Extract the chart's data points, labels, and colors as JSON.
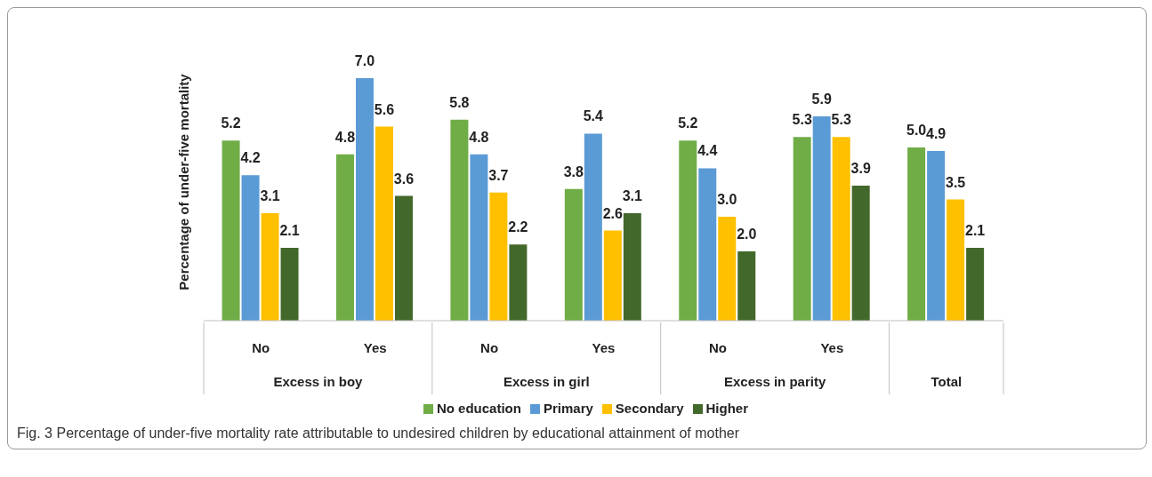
{
  "chart_data": {
    "type": "bar",
    "ylabel": "Percentage of under-five mortality",
    "categories": [
      "No",
      "Yes",
      "No",
      "Yes",
      "No",
      "Yes",
      null
    ],
    "series": [
      {
        "name": "No education",
        "color": "#70ad47",
        "values": [
          5.2,
          4.8,
          5.8,
          3.8,
          5.2,
          5.3,
          5.0
        ],
        "value_labels": [
          "5.2",
          "4.8",
          "5.8",
          "3.8",
          "5.2",
          "5.3",
          "5.0"
        ]
      },
      {
        "name": "Primary",
        "color": "#5b9bd5",
        "values": [
          4.2,
          7.0,
          4.8,
          5.4,
          4.4,
          5.9,
          4.9
        ],
        "value_labels": [
          "4.2",
          "7.0",
          "4.8",
          "5.4",
          "4.4",
          "5.9",
          "4.9"
        ]
      },
      {
        "name": "Secondary",
        "color": "#ffc000",
        "values": [
          3.1,
          5.6,
          3.7,
          2.6,
          3.0,
          5.3,
          3.5
        ],
        "value_labels": [
          "3.1",
          "5.6",
          "3.7",
          "2.6",
          "3.0",
          "5.3",
          "3.5"
        ]
      },
      {
        "name": "Higher",
        "color": "#43682b",
        "values": [
          2.1,
          3.6,
          2.2,
          3.1,
          2.0,
          3.9,
          2.1
        ],
        "value_labels": [
          "2.1",
          "3.6",
          "2.2",
          "3.1",
          "2.0",
          "3.9",
          "2.1"
        ]
      }
    ],
    "annotations": [
      "Excess in boy",
      "Excess in girl",
      "Excess in parity",
      "Total",
      "Fig. 3  Percentage of under-five mortality rate attributable to undesired children by educational attainment of mother"
    ],
    "tick_labels": "x",
    "grid": false,
    "legend": "bottom"
  }
}
